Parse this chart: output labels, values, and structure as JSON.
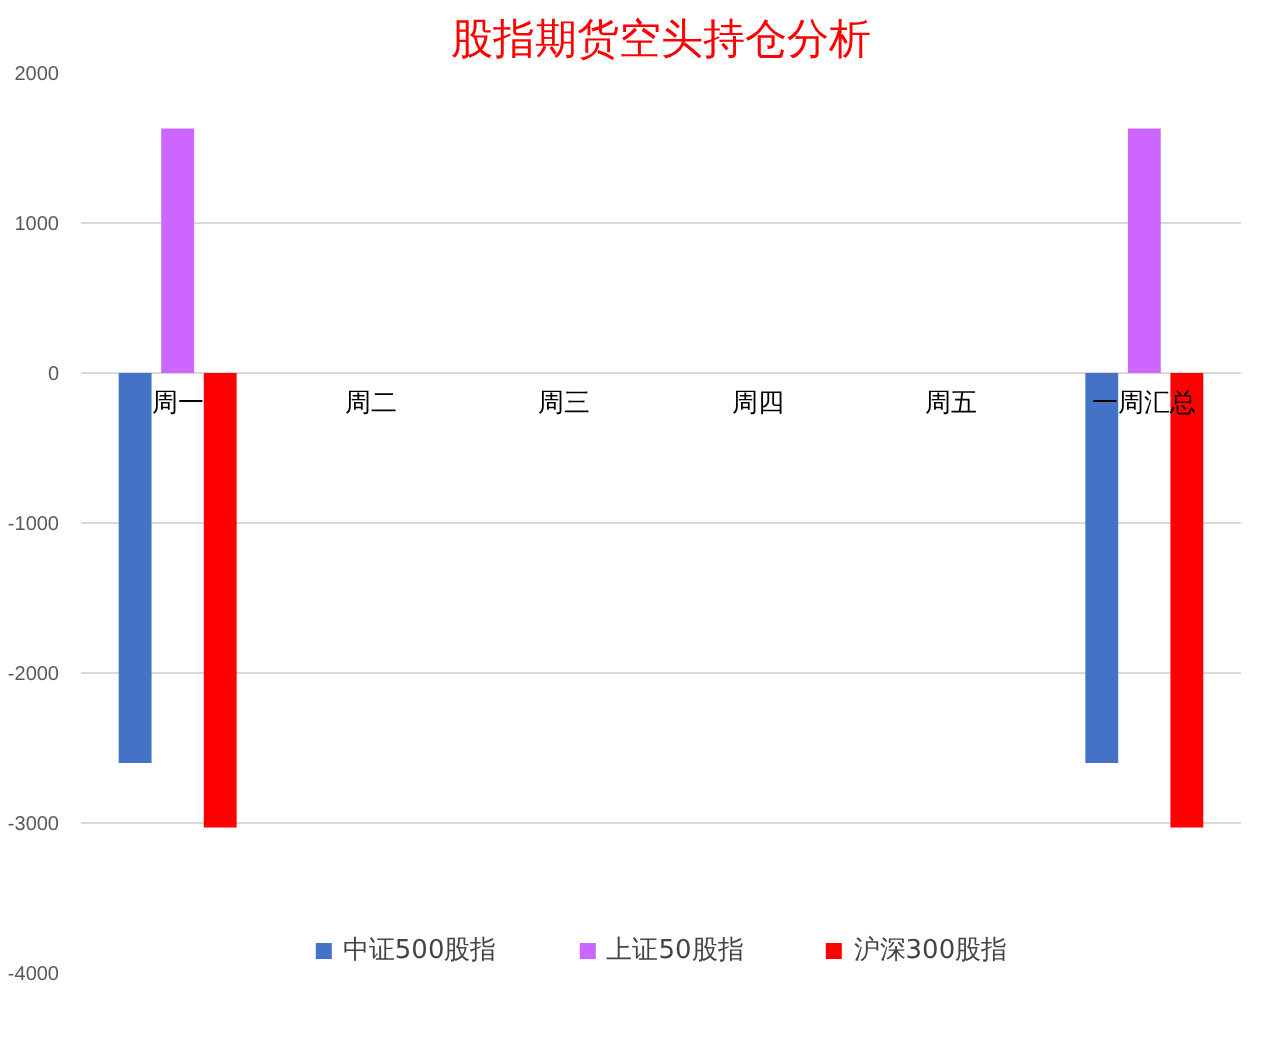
{
  "chart_data": {
    "type": "bar",
    "title": "股指期货空头持仓分析",
    "categories": [
      "周一",
      "周二",
      "周三",
      "周四",
      "周五",
      "一周汇总"
    ],
    "series": [
      {
        "name": "中证500股指",
        "color": "#4472c4",
        "values": [
          -2600,
          null,
          null,
          null,
          null,
          -2600
        ]
      },
      {
        "name": "上证50股指",
        "color": "#cc66ff",
        "values": [
          1630,
          null,
          null,
          null,
          null,
          1630
        ]
      },
      {
        "name": "沪深300股指",
        "color": "#ff0000",
        "values": [
          -3030,
          null,
          null,
          null,
          null,
          -3030
        ]
      }
    ],
    "ylim": [
      -4000,
      2000
    ],
    "yticks": [
      -4000,
      -3000,
      -2000,
      -1000,
      0,
      1000,
      2000
    ],
    "grid": "y",
    "legend": "bottom"
  }
}
